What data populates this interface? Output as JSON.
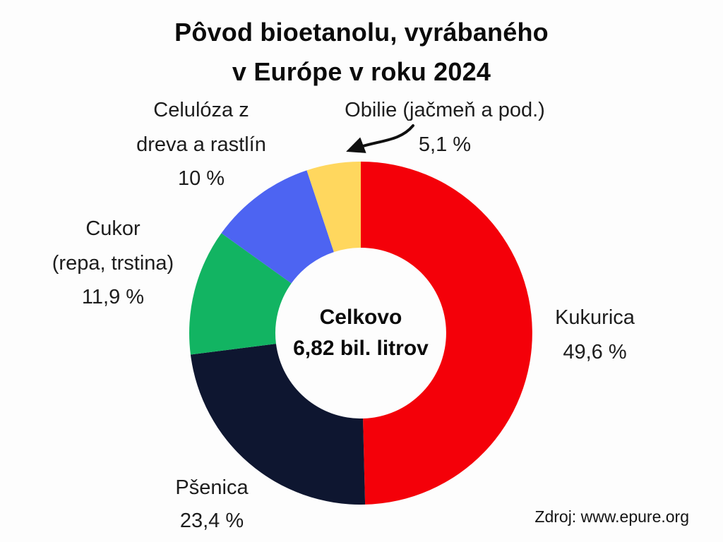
{
  "title": {
    "line1": "Pôvod bioetanolu, vyrábaného",
    "line2": "v Európe v roku 2024"
  },
  "center": {
    "line1": "Celkovo",
    "line2": "6,82 bil. litrov"
  },
  "source": "Zdroj: www.epure.org",
  "callouts": {
    "celuloza": {
      "lines": [
        "Celulóza z",
        "dreva a rastlín",
        "10 %"
      ]
    },
    "obilie": {
      "lines": [
        "Obilie (jačmeň a pod.)",
        "5,1 %"
      ]
    },
    "cukor": {
      "lines": [
        "Cukor",
        "(repa, trstina)",
        "11,9 %"
      ]
    },
    "kukurica": {
      "lines": [
        "Kukurica",
        "49,6 %"
      ]
    },
    "psenica": {
      "lines": [
        "Pšenica",
        "23,4 %"
      ]
    }
  },
  "chart_data": {
    "type": "pie",
    "donut": true,
    "title": "Pôvod bioetanolu, vyrábaného v Európe v roku 2024",
    "center_label": "Celkovo 6,82 bil. litrov",
    "start_angle_deg": 0,
    "direction": "clockwise",
    "legend_position": "around-chart",
    "segments": [
      {
        "label": "Kukurica",
        "value": 49.6,
        "display": "49,6 %",
        "color": "#f40009"
      },
      {
        "label": "Pšenica",
        "value": 23.4,
        "display": "23,4 %",
        "color": "#0e1630"
      },
      {
        "label": "Cukor (repa, trstina)",
        "value": 11.9,
        "display": "11,9 %",
        "color": "#12b462"
      },
      {
        "label": "Celulóza z dreva a rastlín",
        "value": 10.0,
        "display": "10 %",
        "color": "#4d64f2"
      },
      {
        "label": "Obilie (jačmeň a pod.)",
        "value": 5.1,
        "display": "5,1 %",
        "color": "#ffd75e"
      }
    ],
    "source": "Zdroj: www.epure.org"
  }
}
